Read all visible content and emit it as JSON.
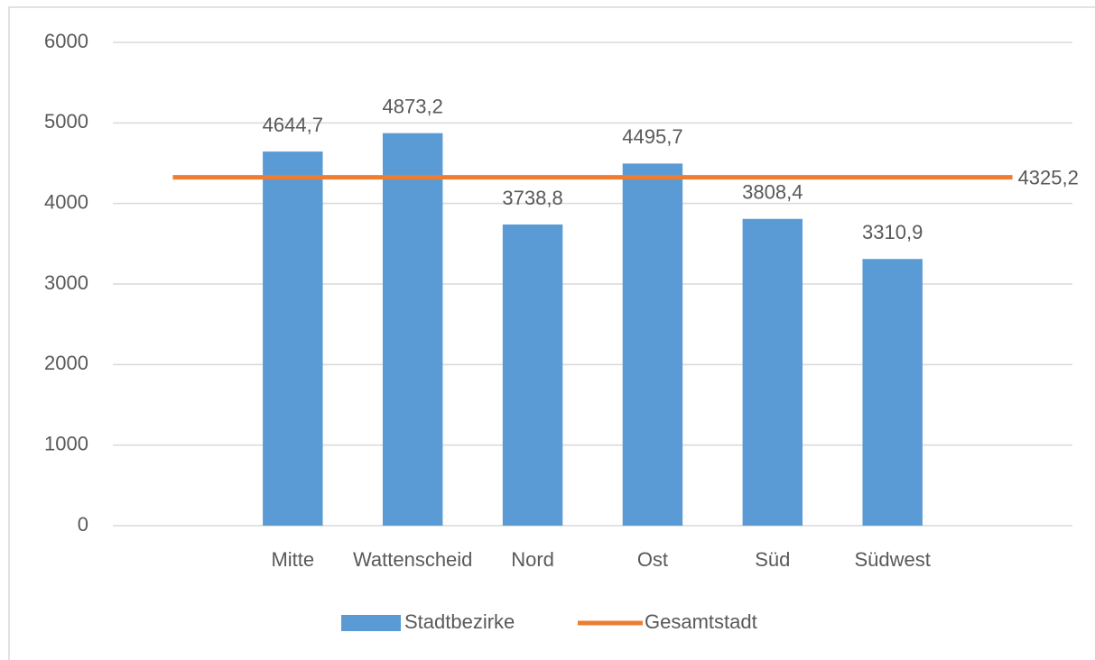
{
  "chart_data": {
    "type": "bar",
    "categories": [
      null,
      "Mitte",
      "Wattenscheid",
      "Nord",
      "Ost",
      "Süd",
      "Südwest",
      null
    ],
    "series": [
      {
        "name": "Stadtbezirke",
        "type": "bar",
        "color": "#5b9bd5",
        "values": [
          null,
          4644.7,
          4873.2,
          3738.8,
          4495.7,
          3808.4,
          3310.9,
          null
        ],
        "value_labels": [
          null,
          "4644,7",
          "4873,2",
          "3738,8",
          "4495,7",
          "3808,4",
          "3310,9",
          null
        ]
      },
      {
        "name": "Gesamtstadt",
        "type": "line",
        "color": "#ed7d31",
        "values": [
          4325.2,
          4325.2,
          4325.2,
          4325.2,
          4325.2,
          4325.2,
          4325.2,
          4325.2
        ],
        "value_labels": [
          null,
          null,
          null,
          null,
          null,
          null,
          null,
          "4325,2"
        ]
      }
    ],
    "ylim": [
      0,
      6000
    ],
    "yticks": [
      0,
      1000,
      2000,
      3000,
      4000,
      5000,
      6000
    ],
    "grid": true,
    "legend": "bottom"
  }
}
